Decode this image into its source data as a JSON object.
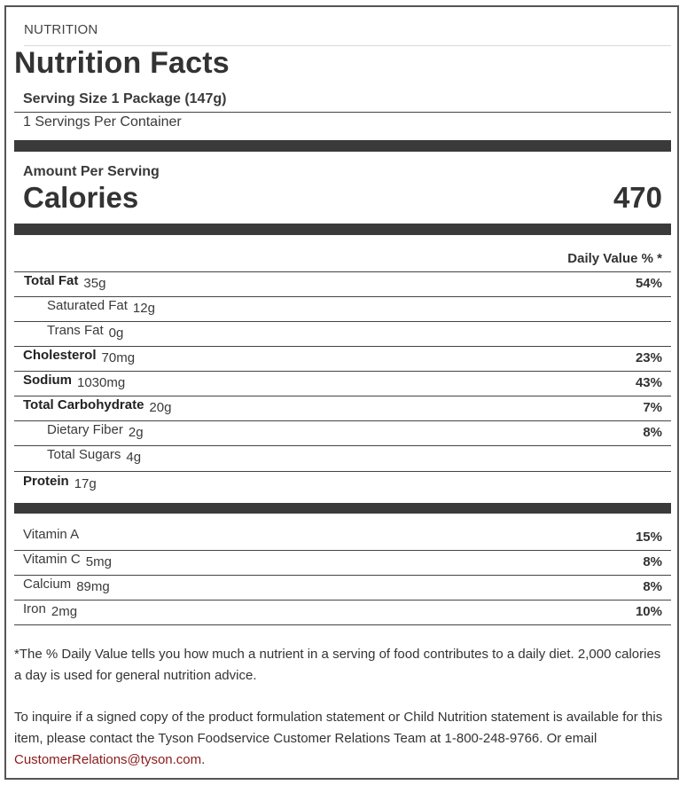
{
  "section_label": "NUTRITION",
  "title": "Nutrition Facts",
  "serving_size": "Serving Size 1 Package (147g)",
  "servings_per_container": "1 Servings Per Container",
  "amount_per_serving": "Amount Per Serving",
  "calories_label": "Calories",
  "calories_value": "470",
  "daily_value_header": "Daily Value % *",
  "nutrients": [
    {
      "name": "Total Fat",
      "amount": "35g",
      "dv": "54%",
      "bold": true,
      "indent": false
    },
    {
      "name": "Saturated Fat",
      "amount": "12g",
      "dv": "",
      "bold": false,
      "indent": true
    },
    {
      "name": "Trans Fat",
      "amount": "0g",
      "dv": "",
      "bold": false,
      "indent": true
    },
    {
      "name": "Cholesterol",
      "amount": "70mg",
      "dv": "23%",
      "bold": true,
      "indent": false
    },
    {
      "name": "Sodium",
      "amount": "1030mg",
      "dv": "43%",
      "bold": true,
      "indent": false
    },
    {
      "name": "Total Carbohydrate",
      "amount": "20g",
      "dv": "7%",
      "bold": true,
      "indent": false
    },
    {
      "name": "Dietary Fiber",
      "amount": "2g",
      "dv": "8%",
      "bold": false,
      "indent": true
    },
    {
      "name": "Total Sugars",
      "amount": "4g",
      "dv": "",
      "bold": false,
      "indent": true
    },
    {
      "name": "Protein",
      "amount": "17g",
      "dv": "",
      "bold": true,
      "indent": false
    }
  ],
  "vitamins": [
    {
      "name": "Vitamin A",
      "amount": "",
      "dv": "15%"
    },
    {
      "name": "Vitamin C",
      "amount": "5mg",
      "dv": "8%"
    },
    {
      "name": "Calcium",
      "amount": "89mg",
      "dv": "8%"
    },
    {
      "name": "Iron",
      "amount": "2mg",
      "dv": "10%"
    }
  ],
  "footnote": "*The % Daily Value tells you how much a nutrient in a serving of food contributes to a daily diet. 2,000 calories a day is used for general nutrition advice.",
  "inquiry_text": "To inquire if a signed copy of the product formulation statement or Child Nutrition statement is available for this item, please contact the Tyson Foodservice Customer Relations Team at 1-800-248-9766. Or email",
  "inquiry_email": "CustomerRelations@tyson.com",
  "inquiry_end": ".",
  "colors": {
    "link": "#8b1a1a",
    "bar": "#3a3a3a",
    "border": "#555555"
  }
}
